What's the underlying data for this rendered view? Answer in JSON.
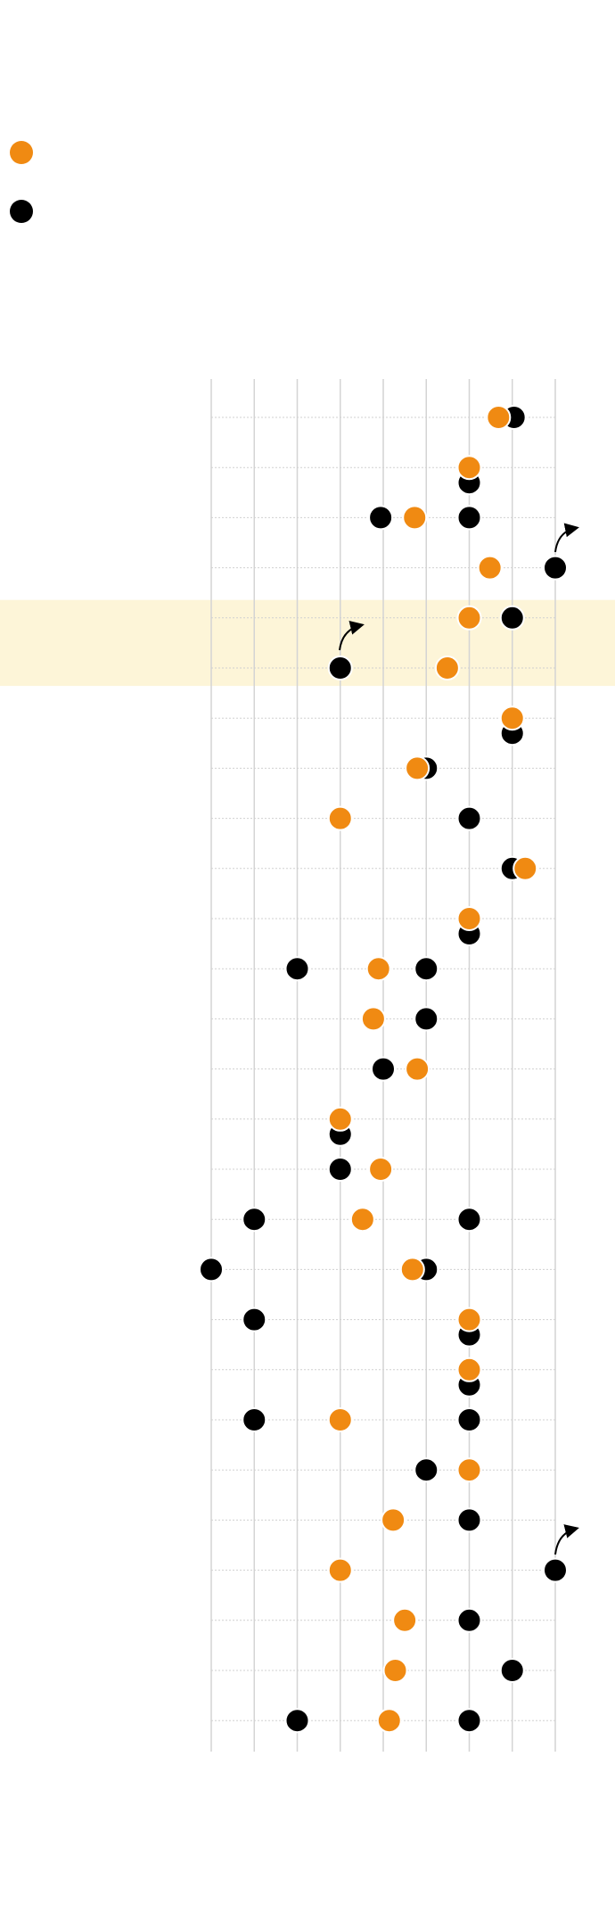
{
  "chart_data": {
    "type": "dot",
    "categories": [
      null,
      null,
      null,
      null,
      null,
      null,
      null,
      null,
      null,
      null,
      null,
      null,
      null,
      null,
      null,
      null,
      null,
      null,
      null,
      null,
      null,
      null,
      null,
      null,
      null,
      null,
      null
    ],
    "xlim": [
      0,
      8
    ],
    "xticks": [
      0,
      1,
      2,
      3,
      4,
      5,
      6,
      7,
      8
    ],
    "grid": true,
    "highlight_rows": [
      4,
      5
    ],
    "highlight_color": "#fdf5d8",
    "series": [
      {
        "color": "#000000",
        "values": [
          7.04,
          6,
          6,
          8,
          7,
          3,
          7,
          5,
          6,
          7,
          6,
          5,
          5,
          4,
          3,
          3,
          6,
          5,
          6,
          6,
          6,
          5,
          6,
          8,
          6,
          7,
          6
        ]
      },
      {
        "color": "#000000",
        "values": [
          null,
          null,
          3.94,
          null,
          null,
          null,
          null,
          null,
          null,
          null,
          null,
          2,
          null,
          null,
          null,
          null,
          1,
          0,
          1,
          null,
          1,
          null,
          null,
          null,
          null,
          null,
          2
        ]
      },
      {
        "color": "#f08a12",
        "values": [
          6.68,
          6,
          4.73,
          6.48,
          6,
          5.49,
          7,
          4.79,
          3,
          7.3,
          6,
          3.89,
          3.77,
          4.79,
          3,
          3.94,
          3.52,
          4.68,
          6,
          6,
          3,
          6,
          4.23,
          3,
          4.5,
          4.28,
          4.14
        ]
      }
    ]
  }
}
